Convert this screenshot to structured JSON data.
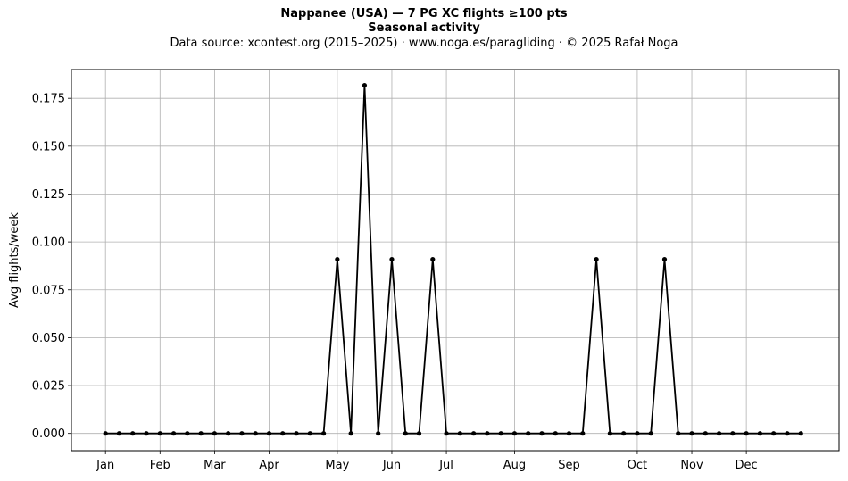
{
  "title": "Nappanee (USA)  —  7 PG XC flights ≥100 pts",
  "subtitle": "Seasonal activity",
  "source_line": "Data source: xcontest.org (2015–2025)  ·  www.noga.es/paragliding  ·  © 2025 Rafał Noga",
  "chart_data": {
    "type": "line",
    "title": "Nappanee (USA)  —  7 PG XC flights ≥100 pts",
    "subtitle": "Seasonal activity",
    "xlabel": "",
    "ylabel": "Avg flights/week",
    "ylim": [
      -0.009,
      0.19
    ],
    "yticks": [
      0.0,
      0.025,
      0.05,
      0.075,
      0.1,
      0.125,
      0.15,
      0.175
    ],
    "ytick_labels": [
      "0.000",
      "0.025",
      "0.050",
      "0.075",
      "0.100",
      "0.125",
      "0.150",
      "0.175"
    ],
    "xlim": [
      -2.5,
      53.8
    ],
    "xticks": [
      0,
      4,
      8,
      12,
      17,
      21,
      25,
      30,
      34,
      39,
      43,
      47
    ],
    "xtick_labels": [
      "Jan",
      "Feb",
      "Mar",
      "Apr",
      "May",
      "Jun",
      "Jul",
      "Aug",
      "Sep",
      "Oct",
      "Nov",
      "Dec"
    ],
    "grid": true,
    "line_color": "#000000",
    "grid_color": "#b0b0b0",
    "series": [
      {
        "x": [
          0,
          1,
          2,
          3,
          4,
          5,
          6,
          7,
          8,
          9,
          10,
          11,
          12,
          13,
          14,
          15,
          16,
          17,
          18,
          19,
          20,
          21,
          22,
          23,
          24,
          25,
          26,
          27,
          28,
          29,
          30,
          31,
          32,
          33,
          34,
          35,
          36,
          37,
          38,
          39,
          40,
          41,
          42,
          43,
          44,
          45,
          46,
          47,
          48,
          49,
          50,
          51
        ],
        "values": [
          0,
          0,
          0,
          0,
          0,
          0,
          0,
          0,
          0,
          0,
          0,
          0,
          0,
          0,
          0,
          0,
          0,
          0.0909,
          0,
          0.1818,
          0,
          0.0909,
          0,
          0,
          0.0909,
          0,
          0,
          0,
          0,
          0,
          0,
          0,
          0,
          0,
          0,
          0,
          0.0909,
          0,
          0,
          0,
          0,
          0.0909,
          0,
          0,
          0,
          0,
          0,
          0,
          0,
          0,
          0,
          0
        ]
      }
    ]
  }
}
